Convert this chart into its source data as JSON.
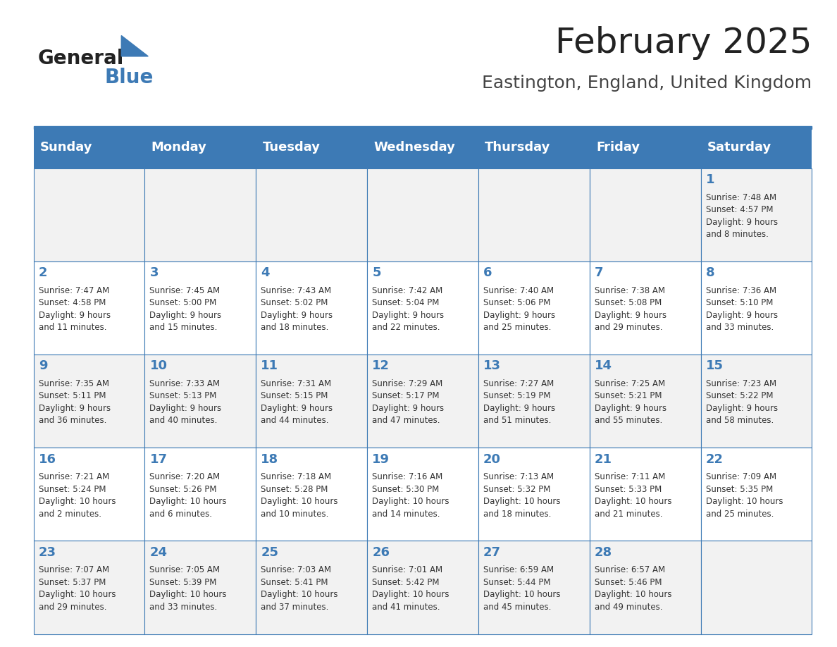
{
  "title": "February 2025",
  "subtitle": "Eastington, England, United Kingdom",
  "header_bg": "#3d7ab5",
  "header_text": "#ffffff",
  "day_names": [
    "Sunday",
    "Monday",
    "Tuesday",
    "Wednesday",
    "Thursday",
    "Friday",
    "Saturday"
  ],
  "cell_bg_light": "#f2f2f2",
  "cell_bg_white": "#ffffff",
  "border_color": "#3d7ab5",
  "text_color": "#333333",
  "day_num_color": "#3d7ab5",
  "title_color": "#222222",
  "subtitle_color": "#444444",
  "logo_general_color": "#222222",
  "logo_blue_color": "#3d7ab5",
  "weeks": [
    [
      {
        "day": null,
        "info": null
      },
      {
        "day": null,
        "info": null
      },
      {
        "day": null,
        "info": null
      },
      {
        "day": null,
        "info": null
      },
      {
        "day": null,
        "info": null
      },
      {
        "day": null,
        "info": null
      },
      {
        "day": 1,
        "info": "Sunrise: 7:48 AM\nSunset: 4:57 PM\nDaylight: 9 hours\nand 8 minutes."
      }
    ],
    [
      {
        "day": 2,
        "info": "Sunrise: 7:47 AM\nSunset: 4:58 PM\nDaylight: 9 hours\nand 11 minutes."
      },
      {
        "day": 3,
        "info": "Sunrise: 7:45 AM\nSunset: 5:00 PM\nDaylight: 9 hours\nand 15 minutes."
      },
      {
        "day": 4,
        "info": "Sunrise: 7:43 AM\nSunset: 5:02 PM\nDaylight: 9 hours\nand 18 minutes."
      },
      {
        "day": 5,
        "info": "Sunrise: 7:42 AM\nSunset: 5:04 PM\nDaylight: 9 hours\nand 22 minutes."
      },
      {
        "day": 6,
        "info": "Sunrise: 7:40 AM\nSunset: 5:06 PM\nDaylight: 9 hours\nand 25 minutes."
      },
      {
        "day": 7,
        "info": "Sunrise: 7:38 AM\nSunset: 5:08 PM\nDaylight: 9 hours\nand 29 minutes."
      },
      {
        "day": 8,
        "info": "Sunrise: 7:36 AM\nSunset: 5:10 PM\nDaylight: 9 hours\nand 33 minutes."
      }
    ],
    [
      {
        "day": 9,
        "info": "Sunrise: 7:35 AM\nSunset: 5:11 PM\nDaylight: 9 hours\nand 36 minutes."
      },
      {
        "day": 10,
        "info": "Sunrise: 7:33 AM\nSunset: 5:13 PM\nDaylight: 9 hours\nand 40 minutes."
      },
      {
        "day": 11,
        "info": "Sunrise: 7:31 AM\nSunset: 5:15 PM\nDaylight: 9 hours\nand 44 minutes."
      },
      {
        "day": 12,
        "info": "Sunrise: 7:29 AM\nSunset: 5:17 PM\nDaylight: 9 hours\nand 47 minutes."
      },
      {
        "day": 13,
        "info": "Sunrise: 7:27 AM\nSunset: 5:19 PM\nDaylight: 9 hours\nand 51 minutes."
      },
      {
        "day": 14,
        "info": "Sunrise: 7:25 AM\nSunset: 5:21 PM\nDaylight: 9 hours\nand 55 minutes."
      },
      {
        "day": 15,
        "info": "Sunrise: 7:23 AM\nSunset: 5:22 PM\nDaylight: 9 hours\nand 58 minutes."
      }
    ],
    [
      {
        "day": 16,
        "info": "Sunrise: 7:21 AM\nSunset: 5:24 PM\nDaylight: 10 hours\nand 2 minutes."
      },
      {
        "day": 17,
        "info": "Sunrise: 7:20 AM\nSunset: 5:26 PM\nDaylight: 10 hours\nand 6 minutes."
      },
      {
        "day": 18,
        "info": "Sunrise: 7:18 AM\nSunset: 5:28 PM\nDaylight: 10 hours\nand 10 minutes."
      },
      {
        "day": 19,
        "info": "Sunrise: 7:16 AM\nSunset: 5:30 PM\nDaylight: 10 hours\nand 14 minutes."
      },
      {
        "day": 20,
        "info": "Sunrise: 7:13 AM\nSunset: 5:32 PM\nDaylight: 10 hours\nand 18 minutes."
      },
      {
        "day": 21,
        "info": "Sunrise: 7:11 AM\nSunset: 5:33 PM\nDaylight: 10 hours\nand 21 minutes."
      },
      {
        "day": 22,
        "info": "Sunrise: 7:09 AM\nSunset: 5:35 PM\nDaylight: 10 hours\nand 25 minutes."
      }
    ],
    [
      {
        "day": 23,
        "info": "Sunrise: 7:07 AM\nSunset: 5:37 PM\nDaylight: 10 hours\nand 29 minutes."
      },
      {
        "day": 24,
        "info": "Sunrise: 7:05 AM\nSunset: 5:39 PM\nDaylight: 10 hours\nand 33 minutes."
      },
      {
        "day": 25,
        "info": "Sunrise: 7:03 AM\nSunset: 5:41 PM\nDaylight: 10 hours\nand 37 minutes."
      },
      {
        "day": 26,
        "info": "Sunrise: 7:01 AM\nSunset: 5:42 PM\nDaylight: 10 hours\nand 41 minutes."
      },
      {
        "day": 27,
        "info": "Sunrise: 6:59 AM\nSunset: 5:44 PM\nDaylight: 10 hours\nand 45 minutes."
      },
      {
        "day": 28,
        "info": "Sunrise: 6:57 AM\nSunset: 5:46 PM\nDaylight: 10 hours\nand 49 minutes."
      },
      {
        "day": null,
        "info": null
      }
    ]
  ]
}
